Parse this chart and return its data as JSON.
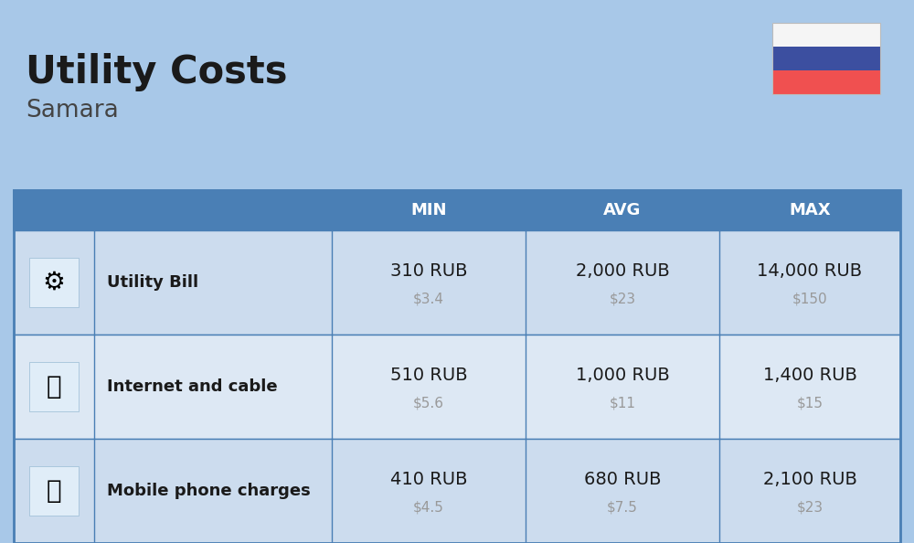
{
  "title": "Utility Costs",
  "subtitle": "Samara",
  "background_color": "#a8c8e8",
  "header_bg_color": "#4a7fb5",
  "header_text_color": "#ffffff",
  "row_bg_color_odd": "#ccdcee",
  "row_bg_color_even": "#dde8f4",
  "col_headers": [
    "MIN",
    "AVG",
    "MAX"
  ],
  "rows": [
    {
      "label": "Utility Bill",
      "min_rub": "310 RUB",
      "min_usd": "$3.4",
      "avg_rub": "2,000 RUB",
      "avg_usd": "$23",
      "max_rub": "14,000 RUB",
      "max_usd": "$150",
      "icon": "utility"
    },
    {
      "label": "Internet and cable",
      "min_rub": "510 RUB",
      "min_usd": "$5.6",
      "avg_rub": "1,000 RUB",
      "avg_usd": "$11",
      "max_rub": "1,400 RUB",
      "max_usd": "$15",
      "icon": "internet"
    },
    {
      "label": "Mobile phone charges",
      "min_rub": "410 RUB",
      "min_usd": "$4.5",
      "avg_rub": "680 RUB",
      "avg_usd": "$7.5",
      "max_rub": "2,100 RUB",
      "max_usd": "$23",
      "icon": "mobile"
    }
  ],
  "title_fontsize": 30,
  "subtitle_fontsize": 19,
  "header_fontsize": 13,
  "label_fontsize": 13,
  "value_fontsize": 14,
  "usd_fontsize": 11,
  "flag_colors": [
    "#f5f5f5",
    "#3c4fa0",
    "#f05050"
  ],
  "table_border_color": "#4a7fb5",
  "usd_color": "#999999",
  "text_color": "#1a1a1a"
}
